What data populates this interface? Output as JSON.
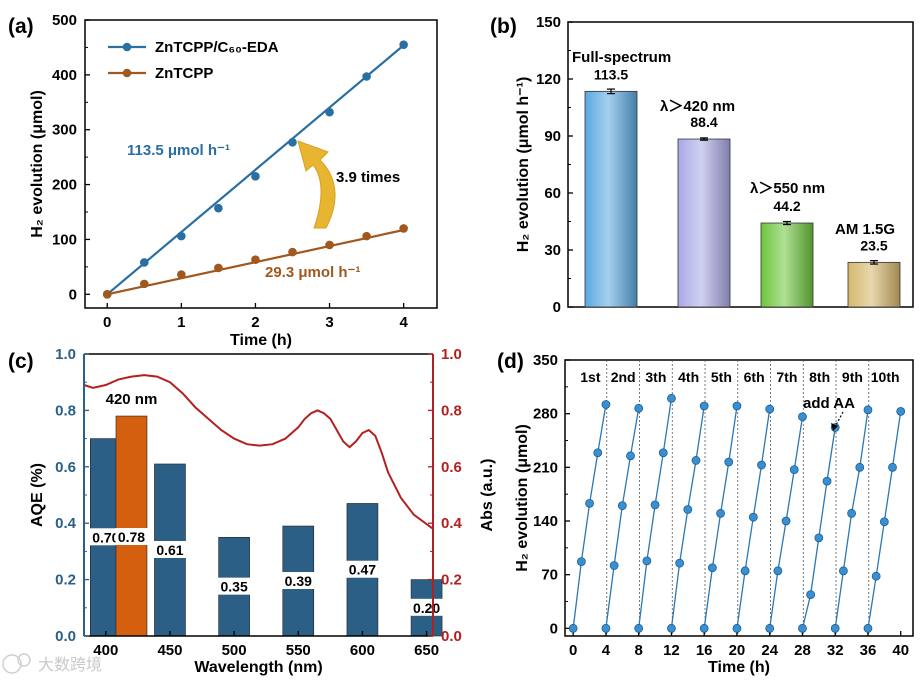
{
  "panels": {
    "a": {
      "label": "(a)"
    },
    "b": {
      "label": "(b)"
    },
    "c": {
      "label": "(c)"
    },
    "d": {
      "label": "(d)"
    }
  },
  "watermark": "大数跨境",
  "chart_data": [
    {
      "panel": "a",
      "type": "line",
      "xlabel": "Time (h)",
      "ylabel": "H₂ evolution (μmol)",
      "xlim": [
        -0.3,
        4.45
      ],
      "ylim": [
        -25,
        500
      ],
      "xticks": [
        "0",
        "1",
        "2",
        "3",
        "4"
      ],
      "yticks": [
        "0",
        "100",
        "200",
        "300",
        "400",
        "500"
      ],
      "x": [
        0,
        0.5,
        1,
        1.5,
        2,
        2.5,
        3,
        3.5,
        4
      ],
      "series": [
        {
          "name": "ZnTCPP/C₆₀-EDA",
          "color": "#2a6fa3",
          "values": [
            0,
            58,
            106,
            157,
            215,
            277,
            332,
            397,
            455
          ]
        },
        {
          "name": "ZnTCPP",
          "color": "#a0581f",
          "values": [
            0,
            19,
            36,
            48,
            63,
            77,
            90,
            106,
            120
          ]
        }
      ],
      "legend": "top-left",
      "annotations": {
        "rate_top": "113.5 μmol h⁻¹",
        "rate_bottom": "29.3 μmol h⁻¹",
        "times": "3.9 times"
      }
    },
    {
      "panel": "b",
      "type": "bar",
      "ylabel": "H₂ evolution (μmol h⁻¹)",
      "ylim": [
        0,
        150
      ],
      "yticks": [
        "0",
        "30",
        "60",
        "90",
        "120",
        "150"
      ],
      "categories": [
        "Full-spectrum",
        "λ＞420 nm",
        "λ＞550 nm",
        "AM 1.5G"
      ],
      "values": [
        113.5,
        88.4,
        44.2,
        23.5
      ],
      "value_labels": [
        "113.5",
        "88.4",
        "44.2",
        "23.5"
      ],
      "errors": [
        1.2,
        0.6,
        0.8,
        0.9
      ],
      "colors": [
        "#5aa9e0",
        "#a9a9e6",
        "#6ec53d",
        "#d6b76c"
      ]
    },
    {
      "panel": "c",
      "type": "bar",
      "xlabel": "Wavelength (nm)",
      "ylabel": "AQE (%)",
      "y2label": "Abs (a.u.)",
      "xlim": [
        383,
        655
      ],
      "ylim": [
        0,
        1.0
      ],
      "xticks": [
        "400",
        "450",
        "500",
        "550",
        "600",
        "650"
      ],
      "yticks": [
        "0.0",
        "0.2",
        "0.4",
        "0.6",
        "0.8",
        "1.0"
      ],
      "wavelengths": [
        400,
        420,
        450,
        500,
        550,
        600,
        650
      ],
      "values": [
        0.7,
        0.78,
        0.61,
        0.35,
        0.39,
        0.47,
        0.2
      ],
      "value_labels": [
        "0.70",
        "0.78",
        "0.61",
        "0.35",
        "0.39",
        "0.47",
        "0.20"
      ],
      "bar_color": "#2c5f85",
      "highlight_color": "#d4600f",
      "highlight_label": "420 nm",
      "abs_curve": {
        "color": "#b42020",
        "x": [
          383,
          390,
          400,
          410,
          420,
          430,
          440,
          450,
          460,
          470,
          480,
          490,
          500,
          510,
          520,
          530,
          540,
          550,
          555,
          560,
          565,
          570,
          575,
          580,
          585,
          590,
          595,
          600,
          605,
          610,
          615,
          620,
          630,
          640,
          655
        ],
        "y": [
          0.89,
          0.88,
          0.89,
          0.91,
          0.92,
          0.925,
          0.92,
          0.9,
          0.86,
          0.81,
          0.77,
          0.73,
          0.7,
          0.68,
          0.675,
          0.68,
          0.7,
          0.74,
          0.77,
          0.79,
          0.8,
          0.79,
          0.77,
          0.73,
          0.69,
          0.67,
          0.69,
          0.72,
          0.73,
          0.71,
          0.65,
          0.58,
          0.49,
          0.43,
          0.38
        ]
      }
    },
    {
      "panel": "d",
      "type": "scatter",
      "xlabel": "Time (h)",
      "ylabel": "H₂ evolution (μmol)",
      "xlim": [
        -1,
        41.5
      ],
      "ylim": [
        -10,
        350
      ],
      "xticks": [
        "0",
        "4",
        "8",
        "12",
        "16",
        "20",
        "24",
        "28",
        "32",
        "36",
        "40"
      ],
      "yticks": [
        "0",
        "70",
        "140",
        "210",
        "280",
        "350"
      ],
      "cycles": [
        "1st",
        "2nd",
        "3th",
        "4th",
        "5th",
        "6th",
        "7th",
        "8th",
        "9th",
        "10th"
      ],
      "cycle_points": [
        [
          0,
          87,
          163,
          229,
          292
        ],
        [
          0,
          82,
          160,
          225,
          287
        ],
        [
          0,
          88,
          161,
          229,
          300
        ],
        [
          0,
          85,
          155,
          219,
          290
        ],
        [
          0,
          79,
          150,
          217,
          290
        ],
        [
          0,
          75,
          145,
          213,
          286
        ],
        [
          0,
          75,
          140,
          207,
          276
        ],
        [
          0,
          44,
          118,
          192,
          262
        ],
        [
          0,
          75,
          150,
          210,
          285
        ],
        [
          0,
          68,
          139,
          210,
          283
        ]
      ],
      "point_color": "#3a8fd0",
      "annotation": "add AA"
    }
  ]
}
